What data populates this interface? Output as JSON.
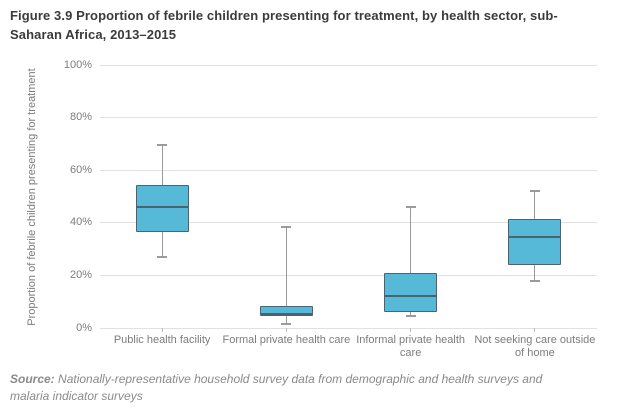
{
  "header": {
    "title": "Figure 3.9 Proportion of febrile children presenting for treatment, by health sector, sub-Saharan Africa, 2013–2015"
  },
  "source": {
    "label": "Source:",
    "text": " Nationally-representative household survey data from demographic and health surveys and malaria indicator surveys"
  },
  "chart_data": {
    "type": "box",
    "title": "Figure 3.9 Proportion of febrile children presenting for treatment, by health sector, sub-Saharan Africa, 2013–2015",
    "xlabel": "",
    "ylabel": "Proportion of febrile children presenting for treatment",
    "ylim": [
      0,
      100
    ],
    "yticks": [
      0,
      20,
      40,
      60,
      80,
      100
    ],
    "ytick_suffix": "%",
    "grid": true,
    "legend": false,
    "categories": [
      "Public health facility",
      "Formal private health care",
      "Informal private health care",
      "Not seeking care outside of home"
    ],
    "series": [
      {
        "category": "Public health facility",
        "min": 27,
        "q1": 36.5,
        "median": 46,
        "q3": 54.5,
        "max": 69.5
      },
      {
        "category": "Formal private health care",
        "min": 1.5,
        "q1": 4.5,
        "median": 5.5,
        "q3": 8.5,
        "max": 38.5
      },
      {
        "category": "Informal private health care",
        "min": 4.5,
        "q1": 6,
        "median": 12,
        "q3": 21,
        "max": 46
      },
      {
        "category": "Not seeking care outside of home",
        "min": 18,
        "q1": 24,
        "median": 34.5,
        "q3": 41.5,
        "max": 52
      }
    ],
    "colors": {
      "box_fill": "#56b9d8",
      "box_stroke": "#4a6370",
      "median": "#4a6370",
      "whisker": "#9b9b9b",
      "grid": "#e1e1e1",
      "axis_text": "#7c7c7c",
      "title_text": "#3b3b3b",
      "source_text": "#8a8a8a"
    }
  }
}
